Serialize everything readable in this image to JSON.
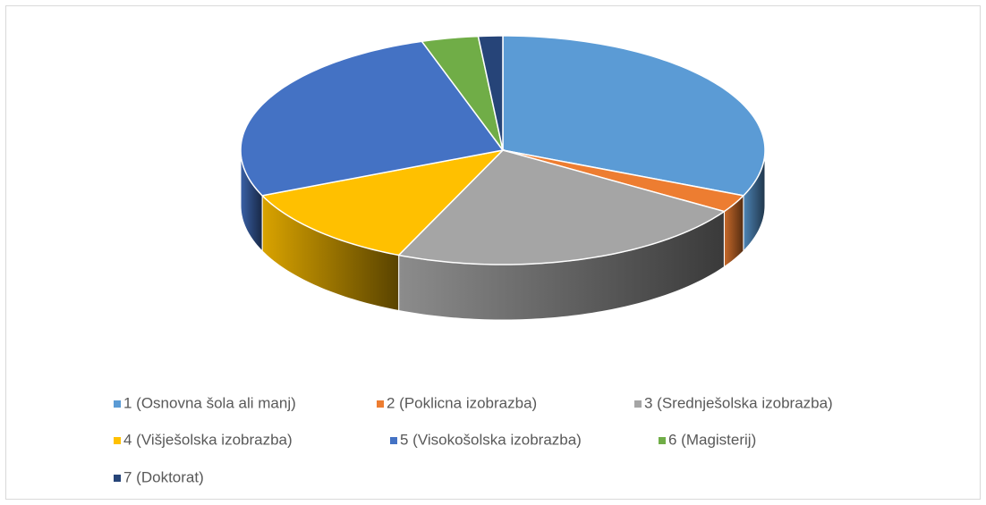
{
  "chart_data": {
    "type": "pie3d",
    "categories": [
      "1 (Osnovna šola ali manj)",
      "2 (Poklicna izobrazba)",
      "3 (Srednješolska izobrazba)",
      "4 (Višješolska izobrazba)",
      "5 (Visokošolska izobrazba)",
      "6 (Magisterij)",
      "7 (Doktorat)"
    ],
    "values": [
      31.5,
      2.5,
      22.5,
      12,
      26.5,
      3.5,
      1.5
    ],
    "colors": [
      "#5b9bd5",
      "#ed7d31",
      "#a5a5a5",
      "#ffc000",
      "#4472c4",
      "#70ad47",
      "#264478"
    ],
    "legend": "bottom"
  }
}
